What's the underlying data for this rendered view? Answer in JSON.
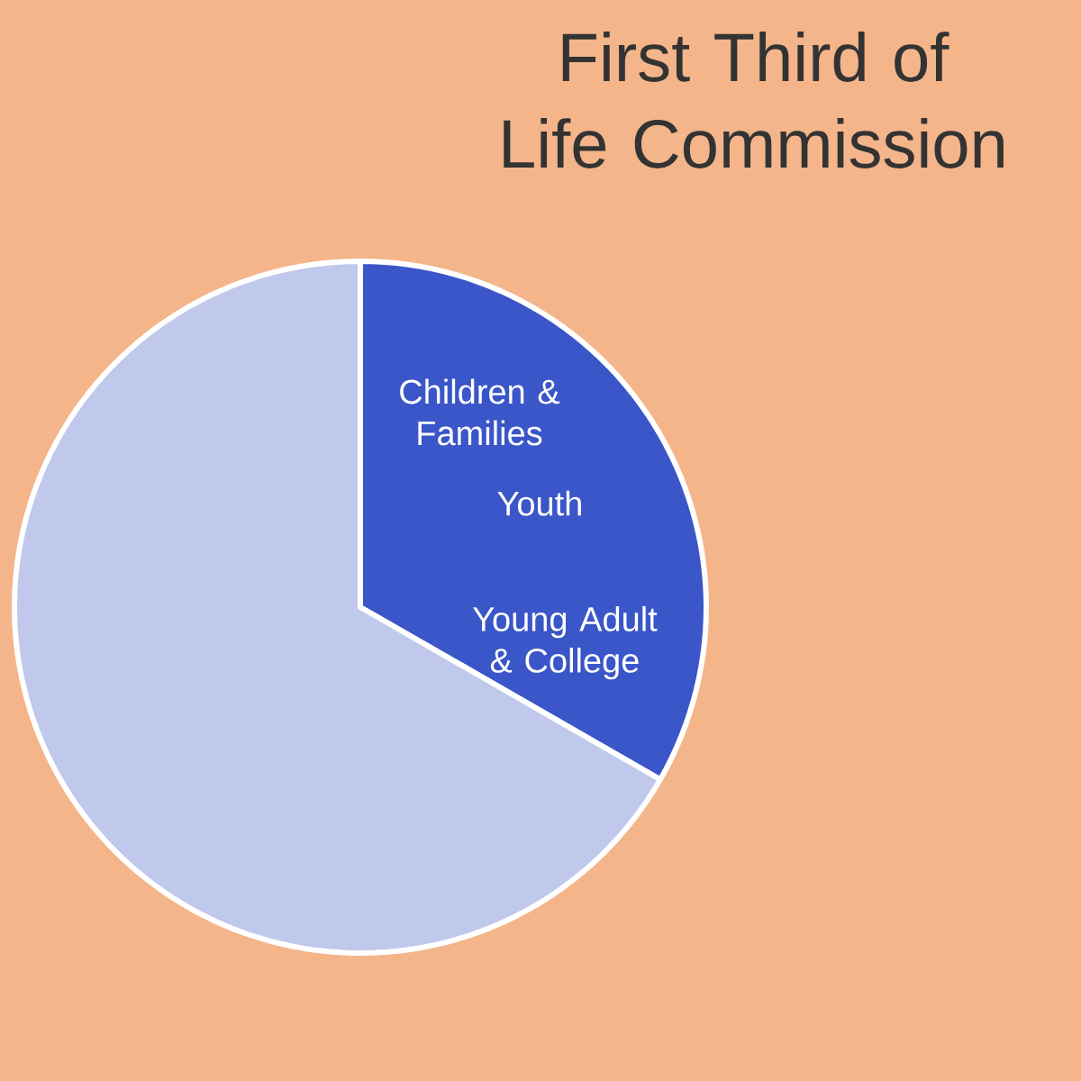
{
  "chart_data": {
    "type": "pie",
    "title": "First Third of Life Commission",
    "categories": [
      null,
      null
    ],
    "values": [
      33.3,
      66.7
    ],
    "colors": [
      "#3a56c8",
      "#c0c8ec"
    ],
    "annotations": [
      "Children & Families",
      "Youth",
      "Young Adult & College"
    ]
  }
}
